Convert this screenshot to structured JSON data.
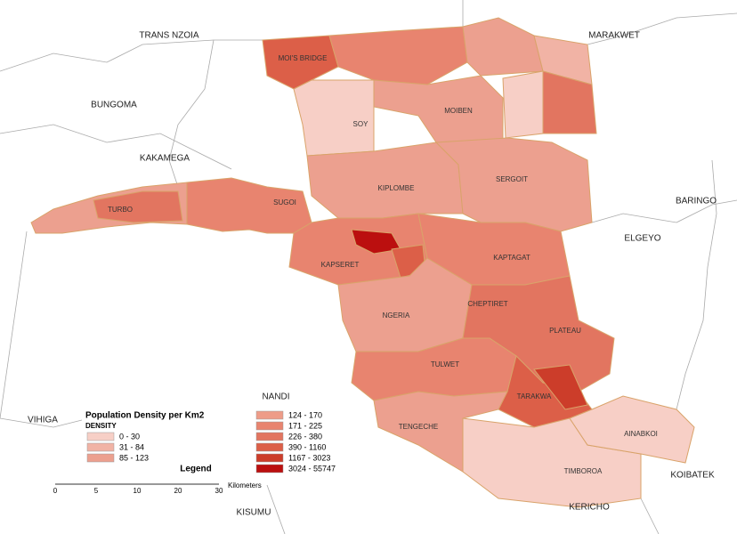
{
  "neighbors": [
    "TRANS NZOIA",
    "BUNGOMA",
    "KAKAMEGA",
    "MARAKWET",
    "BARINGO",
    "ELGEYO",
    "NANDI",
    "VIHIGA",
    "KISUMU",
    "KERICHO",
    "KOIBATEK"
  ],
  "regions": [
    "MOI'S BRIDGE",
    "SOY",
    "TURBO",
    "SUGOI",
    "KIPLOMBE",
    "KAPSERET",
    "NGERIA",
    "SERGOIT",
    "KAPTAGAT",
    "PLATEAU",
    "TULWET",
    "TARAKWA",
    "TIMBOROA",
    "AINABKOI",
    "MOIBEN",
    "CHEPTIRET",
    "TENGECHE"
  ],
  "legend": {
    "title": "Population Density per Km2",
    "field": "DENSITY",
    "heading": "Legend",
    "classes": [
      {
        "label": "0 - 30",
        "color": "#f7cfc6"
      },
      {
        "label": "31 - 84",
        "color": "#f1b3a5"
      },
      {
        "label": "85 - 123",
        "color": "#eca08f"
      },
      {
        "label": "124 - 170",
        "color": "#ee9c88"
      },
      {
        "label": "171 - 225",
        "color": "#e8846f"
      },
      {
        "label": "226 - 380",
        "color": "#e27560"
      },
      {
        "label": "390 - 1160",
        "color": "#dc5f48"
      },
      {
        "label": "1167 - 3023",
        "color": "#cc3d2a"
      },
      {
        "label": "3024 - 55747",
        "color": "#bb0f0f"
      }
    ]
  },
  "scale": {
    "ticks": [
      "0",
      "5",
      "10",
      "20",
      "30"
    ],
    "unit": "Kilometers"
  }
}
